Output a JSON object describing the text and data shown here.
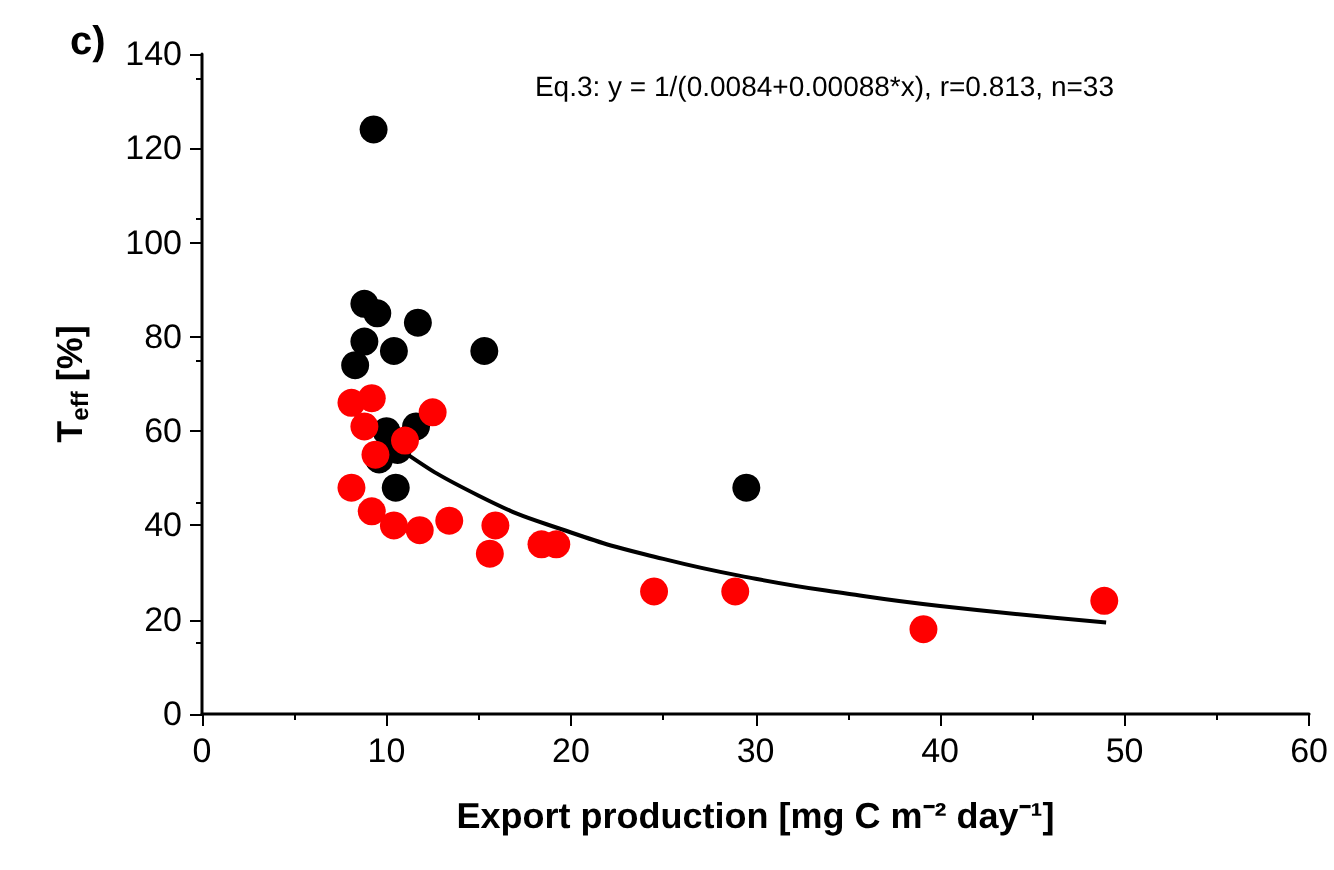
{
  "chart_data": {
    "type": "scatter",
    "title": "c)",
    "xlabel": "Export production [mg C m⁻² day⁻¹]",
    "ylabel": "T$_{eff}$ [%]",
    "annotations": [
      "Eq.3: y = 1/(0.0084+0.00088*x), r=0.813, n=33"
    ],
    "xlim": [
      0,
      60
    ],
    "xticks": [
      0,
      10,
      20,
      30,
      40,
      50,
      60
    ],
    "ylim": [
      0,
      140
    ],
    "yticks": [
      0,
      20,
      40,
      60,
      80,
      100,
      120,
      140
    ],
    "grid": false,
    "marker": "circle",
    "series": [
      {
        "color": "#000000",
        "x": [
          9.3,
          8.8,
          9.5,
          11.7,
          8.8,
          10.4,
          15.3,
          8.3,
          10.0,
          11.6,
          10.6,
          10.5,
          9.6,
          29.5
        ],
        "values": [
          124,
          87,
          85,
          83,
          79,
          77,
          77,
          74,
          60,
          61,
          56,
          48,
          54,
          48
        ]
      },
      {
        "color": "#ff0000",
        "x": [
          8.1,
          9.2,
          12.5,
          8.8,
          11.0,
          9.4,
          8.1,
          9.2,
          10.4,
          11.8,
          13.4,
          15.9,
          15.6,
          18.4,
          19.2,
          24.5,
          28.9,
          39.1,
          48.9
        ],
        "values": [
          66,
          67,
          64,
          61,
          58,
          55,
          48,
          43,
          40,
          39,
          41,
          40,
          34,
          36,
          36,
          26,
          26,
          18,
          24
        ]
      },
      {
        "type": "line",
        "color": "#000000",
        "marker": "none",
        "x": [
          8,
          10,
          15,
          20,
          25,
          30,
          35,
          40,
          49
        ],
        "values": [
          64.8,
          58.1,
          46.3,
          38.5,
          32.9,
          28.7,
          25.5,
          22.9,
          19.4
        ]
      }
    ]
  }
}
